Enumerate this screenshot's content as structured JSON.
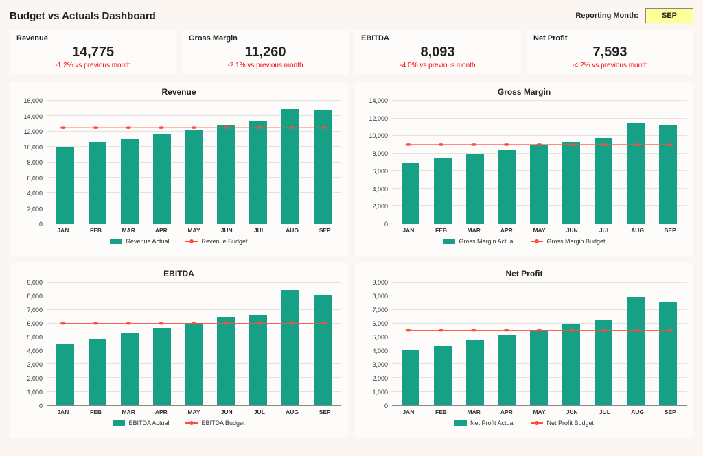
{
  "title": "Budget vs Actuals Dashboard",
  "reporting_label": "Reporting Month:",
  "reporting_month": "SEP",
  "colors": {
    "page_bg": "#fcf6f3",
    "panel_bg": "#fdfcfa",
    "bar": "#16a085",
    "line": "#ff4d3d",
    "delta_neg": "#ff0000",
    "text": "#222222",
    "grid": "#e8e2de",
    "reporting_bg": "#ffff99"
  },
  "months": [
    "JAN",
    "FEB",
    "MAR",
    "APR",
    "MAY",
    "JUN",
    "JUL",
    "AUG",
    "SEP"
  ],
  "kpis": [
    {
      "label": "Revenue",
      "value": "14,775",
      "delta": "-1.2% vs previous month"
    },
    {
      "label": "Gross Margin",
      "value": "11,260",
      "delta": "-2.1% vs previous month"
    },
    {
      "label": "EBITDA",
      "value": "8,093",
      "delta": "-4.0% vs previous month"
    },
    {
      "label": "Net Profit",
      "value": "7,593",
      "delta": "-4.2% vs previous month"
    }
  ],
  "charts": [
    {
      "title": "Revenue",
      "ymax": 16000,
      "ystep": 2000,
      "actual": [
        10000,
        10600,
        11100,
        11700,
        12200,
        12800,
        13300,
        14950,
        14775
      ],
      "budget": 12500,
      "legend_actual": "Revenue Actual",
      "legend_budget": "Revenue Budget"
    },
    {
      "title": "Gross Margin",
      "ymax": 14000,
      "ystep": 2000,
      "actual": [
        7000,
        7500,
        7900,
        8400,
        8900,
        9300,
        9800,
        11500,
        11260
      ],
      "budget": 9000,
      "legend_actual": "Gross Margin Actual",
      "legend_budget": "Gross Margin Budget"
    },
    {
      "title": "EBITDA",
      "ymax": 9000,
      "ystep": 1000,
      "actual": [
        4500,
        4900,
        5300,
        5700,
        6050,
        6450,
        6650,
        8430,
        8093
      ],
      "budget": 6000,
      "legend_actual": "EBITDA Actual",
      "legend_budget": "EBITDA Budget"
    },
    {
      "title": "Net Profit",
      "ymax": 9000,
      "ystep": 1000,
      "actual": [
        4000,
        4400,
        4800,
        5150,
        5550,
        6000,
        6300,
        7930,
        7593
      ],
      "budget": 5500,
      "legend_actual": "Net Profit Actual",
      "legend_budget": "Net Profit Budget"
    }
  ]
}
